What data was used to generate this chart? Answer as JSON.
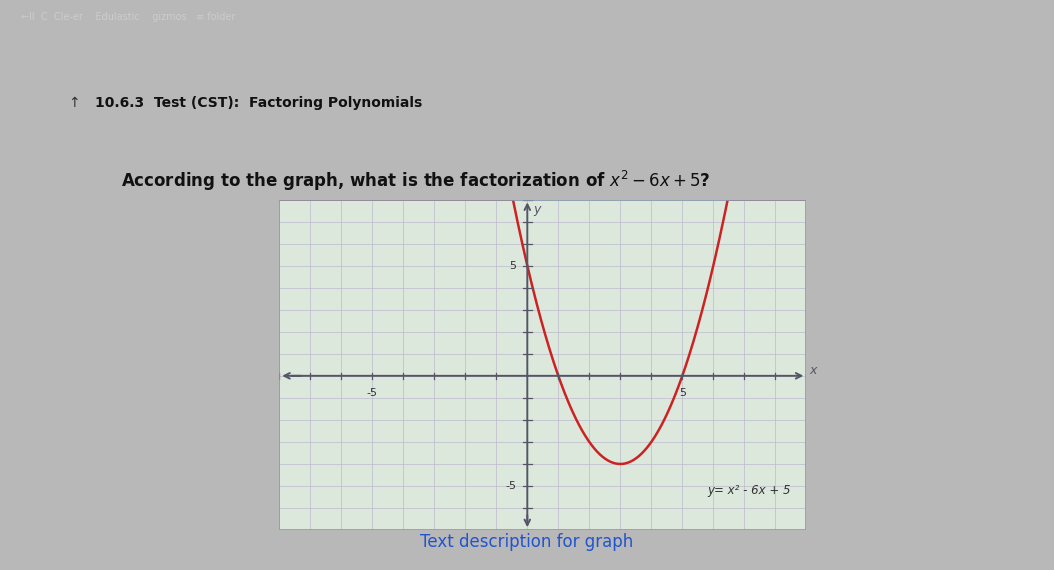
{
  "title_bar_text": "10.6.3  Test (CST):  Factoring Polynomials",
  "question_text": "According to the graph, what is the factorization of $x^2 - 6x + 5$?",
  "equation_label": "y= x² - 6x + 5",
  "link_text": "Text description for graph",
  "browser_bar_color": "#3a3028",
  "page_bg": "#e8e8e8",
  "header_bg": "#c8cad8",
  "content_bg": "#f0f0f0",
  "plot_bg": "#dde8dd",
  "curve_color": "#cc2222",
  "axis_color": "#555566",
  "grid_color": "#bbbbcc",
  "border_color": "#8899aa",
  "link_color": "#2255cc",
  "xlim": [
    -8,
    9
  ],
  "ylim": [
    -7,
    8
  ],
  "figure_bg": "#b8b8b8"
}
